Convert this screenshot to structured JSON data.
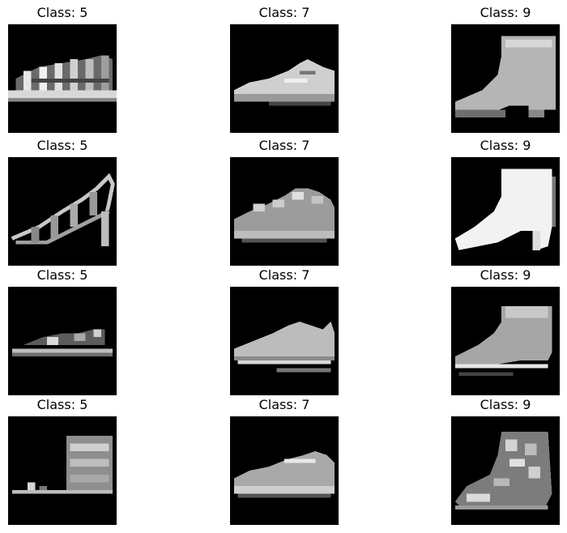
{
  "grid": {
    "rows": 4,
    "cols": 3,
    "cells": [
      {
        "title": "Class: 5",
        "icon": "sandal-strappy"
      },
      {
        "title": "Class: 7",
        "icon": "sneaker-low"
      },
      {
        "title": "Class: 9",
        "icon": "ankle-boot"
      },
      {
        "title": "Class: 5",
        "icon": "high-heel-sandal"
      },
      {
        "title": "Class: 7",
        "icon": "sneaker-textured"
      },
      {
        "title": "Class: 9",
        "icon": "white-heeled-boot"
      },
      {
        "title": "Class: 5",
        "icon": "flat-sandal"
      },
      {
        "title": "Class: 7",
        "icon": "sneaker-low-2"
      },
      {
        "title": "Class: 9",
        "icon": "ankle-boot-2"
      },
      {
        "title": "Class: 5",
        "icon": "platform-sandal"
      },
      {
        "title": "Class: 7",
        "icon": "sneaker-low-3"
      },
      {
        "title": "Class: 9",
        "icon": "patterned-boot"
      }
    ]
  }
}
